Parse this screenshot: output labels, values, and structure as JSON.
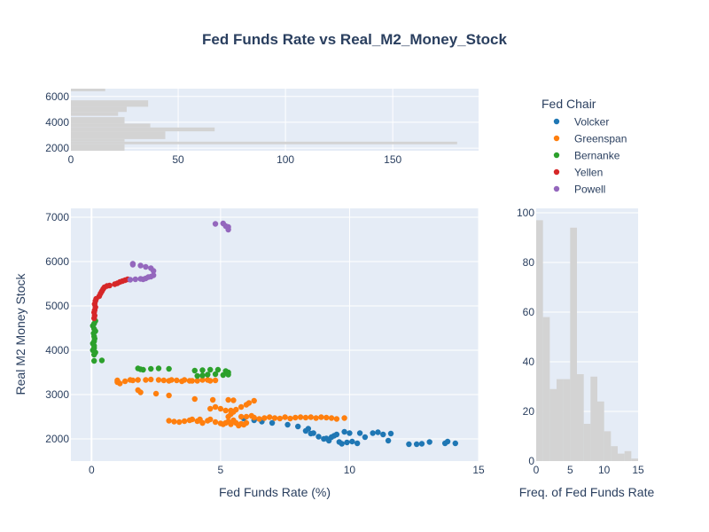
{
  "chart_data": {
    "type": "scatter",
    "title": "Fed Funds Rate vs Real_M2_Money_Stock",
    "xlabel": "Fed Funds Rate (%)",
    "ylabel": "Real M2 Money Stock",
    "xlim": [
      -0.8,
      15
    ],
    "ylim": [
      1500,
      7200
    ],
    "x_ticks": [
      0,
      5,
      10,
      15
    ],
    "y_ticks": [
      2000,
      3000,
      4000,
      5000,
      6000,
      7000
    ],
    "grid": true,
    "plot_bg": "#e5ecf6",
    "legend": {
      "title": "Fed Chair",
      "placement": "top-right"
    },
    "series": [
      {
        "name": "Volcker",
        "color": "#1f77b4",
        "points": [
          [
            5.9,
            2460
          ],
          [
            6.3,
            2420
          ],
          [
            6.6,
            2390
          ],
          [
            7.0,
            2360
          ],
          [
            7.6,
            2320
          ],
          [
            8.0,
            2280
          ],
          [
            8.4,
            2230
          ],
          [
            8.6,
            2130
          ],
          [
            8.8,
            2050
          ],
          [
            9.0,
            2000
          ],
          [
            9.2,
            1960
          ],
          [
            9.3,
            2040
          ],
          [
            9.5,
            2100
          ],
          [
            9.6,
            1930
          ],
          [
            9.7,
            1890
          ],
          [
            9.8,
            2160
          ],
          [
            10.0,
            2130
          ],
          [
            10.1,
            1940
          ],
          [
            10.3,
            1900
          ],
          [
            10.4,
            2130
          ],
          [
            10.9,
            2130
          ],
          [
            11.1,
            2150
          ],
          [
            11.3,
            2100
          ],
          [
            11.5,
            1960
          ],
          [
            11.6,
            2120
          ],
          [
            12.3,
            1880
          ],
          [
            12.6,
            1880
          ],
          [
            12.8,
            1890
          ],
          [
            13.1,
            1930
          ],
          [
            13.8,
            1940
          ],
          [
            14.1,
            1900
          ],
          [
            8.3,
            2180
          ],
          [
            8.5,
            2120
          ],
          [
            9.1,
            2010
          ],
          [
            9.4,
            2070
          ],
          [
            9.9,
            1920
          ],
          [
            10.6,
            2040
          ],
          [
            13.7,
            1900
          ]
        ]
      },
      {
        "name": "Greenspan",
        "color": "#ff7f0e",
        "points": [
          [
            1.0,
            3280
          ],
          [
            1.0,
            3320
          ],
          [
            1.1,
            3250
          ],
          [
            1.3,
            3300
          ],
          [
            1.5,
            3330
          ],
          [
            1.6,
            3320
          ],
          [
            1.8,
            3330
          ],
          [
            1.8,
            3100
          ],
          [
            1.9,
            3050
          ],
          [
            2.1,
            3330
          ],
          [
            2.3,
            3340
          ],
          [
            2.5,
            3020
          ],
          [
            2.6,
            3330
          ],
          [
            2.8,
            3320
          ],
          [
            3.0,
            3310
          ],
          [
            3.0,
            2980
          ],
          [
            3.1,
            3330
          ],
          [
            3.3,
            3320
          ],
          [
            3.5,
            3300
          ],
          [
            3.6,
            3330
          ],
          [
            3.8,
            3310
          ],
          [
            3.9,
            3310
          ],
          [
            4.0,
            2900
          ],
          [
            4.1,
            3310
          ],
          [
            4.3,
            3330
          ],
          [
            4.5,
            3330
          ],
          [
            4.6,
            3310
          ],
          [
            4.8,
            3320
          ],
          [
            4.7,
            2880
          ],
          [
            3.0,
            2410
          ],
          [
            3.2,
            2390
          ],
          [
            3.4,
            2380
          ],
          [
            3.6,
            2400
          ],
          [
            3.8,
            2420
          ],
          [
            3.9,
            2440
          ],
          [
            4.1,
            2400
          ],
          [
            4.3,
            2360
          ],
          [
            4.5,
            2410
          ],
          [
            4.6,
            2440
          ],
          [
            4.8,
            2380
          ],
          [
            5.0,
            2350
          ],
          [
            5.1,
            2330
          ],
          [
            5.2,
            2360
          ],
          [
            5.3,
            2390
          ],
          [
            5.4,
            2330
          ],
          [
            5.5,
            2420
          ],
          [
            5.6,
            2360
          ],
          [
            5.7,
            2300
          ],
          [
            5.8,
            2340
          ],
          [
            5.9,
            2320
          ],
          [
            6.0,
            2360
          ],
          [
            5.3,
            2500
          ],
          [
            5.4,
            2560
          ],
          [
            5.4,
            2640
          ],
          [
            5.5,
            2610
          ],
          [
            5.6,
            2660
          ],
          [
            5.3,
            2880
          ],
          [
            5.5,
            2870
          ],
          [
            5.8,
            2720
          ],
          [
            6.0,
            2770
          ],
          [
            6.1,
            2810
          ],
          [
            6.3,
            2860
          ],
          [
            4.6,
            2680
          ],
          [
            4.8,
            2720
          ],
          [
            5.0,
            2680
          ],
          [
            5.2,
            2640
          ],
          [
            6.3,
            2480
          ],
          [
            6.5,
            2450
          ],
          [
            6.7,
            2470
          ],
          [
            6.9,
            2490
          ],
          [
            7.1,
            2470
          ],
          [
            7.3,
            2460
          ],
          [
            7.5,
            2490
          ],
          [
            7.7,
            2460
          ],
          [
            7.9,
            2480
          ],
          [
            8.1,
            2490
          ],
          [
            8.3,
            2480
          ],
          [
            8.5,
            2490
          ],
          [
            8.7,
            2470
          ],
          [
            8.9,
            2490
          ],
          [
            9.1,
            2480
          ],
          [
            9.3,
            2470
          ],
          [
            9.5,
            2450
          ],
          [
            9.8,
            2470
          ],
          [
            6.0,
            2500
          ],
          [
            6.2,
            2520
          ],
          [
            5.8,
            2500
          ],
          [
            4.3,
            2360
          ],
          [
            4.2,
            2440
          ]
        ]
      },
      {
        "name": "Bernanke",
        "color": "#2ca02c",
        "points": [
          [
            1.8,
            3590
          ],
          [
            1.9,
            3570
          ],
          [
            2.0,
            3560
          ],
          [
            2.3,
            3580
          ],
          [
            2.6,
            3590
          ],
          [
            3.0,
            3580
          ],
          [
            4.0,
            3540
          ],
          [
            4.3,
            3550
          ],
          [
            4.6,
            3560
          ],
          [
            4.9,
            3560
          ],
          [
            5.2,
            3530
          ],
          [
            5.3,
            3500
          ],
          [
            5.3,
            3450
          ],
          [
            4.5,
            3450
          ],
          [
            4.8,
            3460
          ],
          [
            5.1,
            3440
          ],
          [
            4.1,
            3420
          ],
          [
            4.3,
            3430
          ],
          [
            0.1,
            3760
          ],
          [
            0.4,
            3770
          ],
          [
            0.1,
            3900
          ],
          [
            0.15,
            3950
          ],
          [
            0.05,
            4000
          ],
          [
            0.1,
            4050
          ],
          [
            0.1,
            4100
          ],
          [
            0.05,
            4150
          ],
          [
            0.1,
            4200
          ],
          [
            0.12,
            4260
          ],
          [
            0.1,
            4310
          ],
          [
            0.08,
            4380
          ],
          [
            0.15,
            4430
          ],
          [
            0.1,
            4480
          ],
          [
            0.05,
            4550
          ],
          [
            0.1,
            4600
          ],
          [
            0.15,
            4660
          ]
        ]
      },
      {
        "name": "Yellen",
        "color": "#d62728",
        "points": [
          [
            0.1,
            4720
          ],
          [
            0.12,
            4780
          ],
          [
            0.1,
            4850
          ],
          [
            0.12,
            4900
          ],
          [
            0.15,
            4970
          ],
          [
            0.12,
            5040
          ],
          [
            0.15,
            5110
          ],
          [
            0.18,
            5160
          ],
          [
            0.3,
            5220
          ],
          [
            0.35,
            5280
          ],
          [
            0.4,
            5330
          ],
          [
            0.45,
            5380
          ],
          [
            0.5,
            5420
          ],
          [
            0.6,
            5450
          ],
          [
            0.7,
            5460
          ],
          [
            0.9,
            5490
          ],
          [
            1.0,
            5510
          ],
          [
            1.1,
            5540
          ],
          [
            1.2,
            5560
          ],
          [
            1.3,
            5580
          ],
          [
            1.4,
            5600
          ]
        ]
      },
      {
        "name": "Powell",
        "color": "#9467bd",
        "points": [
          [
            1.5,
            5590
          ],
          [
            1.7,
            5600
          ],
          [
            1.9,
            5610
          ],
          [
            2.1,
            5620
          ],
          [
            2.3,
            5660
          ],
          [
            2.4,
            5690
          ],
          [
            2.4,
            5790
          ],
          [
            2.3,
            5850
          ],
          [
            2.1,
            5880
          ],
          [
            1.9,
            5910
          ],
          [
            1.6,
            5950
          ],
          [
            1.6,
            5930
          ],
          [
            2.0,
            5600
          ],
          [
            2.2,
            5650
          ],
          [
            4.8,
            6850
          ],
          [
            5.1,
            6860
          ],
          [
            5.3,
            6780
          ],
          [
            5.3,
            6720
          ],
          [
            5.2,
            6800
          ]
        ]
      }
    ],
    "top_histogram": {
      "x_axis_ticks": [
        0,
        50,
        100,
        150
      ],
      "xlim": [
        0,
        190
      ],
      "y_axis_ticks": [
        2000,
        4000,
        6000
      ],
      "bins": [
        {
          "y0": 6400,
          "y1": 6600,
          "count": 16
        },
        {
          "y0": 5200,
          "y1": 5700,
          "count": 36
        },
        {
          "y0": 4800,
          "y1": 5200,
          "count": 26
        },
        {
          "y0": 4500,
          "y1": 4800,
          "count": 22
        },
        {
          "y0": 3900,
          "y1": 4400,
          "count": 25
        },
        {
          "y0": 3600,
          "y1": 3900,
          "count": 37
        },
        {
          "y0": 3300,
          "y1": 3600,
          "count": 67
        },
        {
          "y0": 2700,
          "y1": 3300,
          "count": 44
        },
        {
          "y0": 2500,
          "y1": 2700,
          "count": 25
        },
        {
          "y0": 2300,
          "y1": 2500,
          "count": 180
        },
        {
          "y0": 1800,
          "y1": 2300,
          "count": 25
        }
      ],
      "bar_color": "#d3d3d3"
    },
    "right_histogram": {
      "xlabel": "Freq. of Fed Funds Rate",
      "x_axis_ticks": [
        0,
        5,
        10,
        15
      ],
      "xlim": [
        0,
        15
      ],
      "y_axis_ticks": [
        0,
        20,
        40,
        60,
        80,
        100
      ],
      "ylim": [
        0,
        100
      ],
      "bins": [
        {
          "x0": 0,
          "x1": 1,
          "count": 97
        },
        {
          "x0": 1,
          "x1": 2,
          "count": 58
        },
        {
          "x0": 2,
          "x1": 3,
          "count": 29
        },
        {
          "x0": 3,
          "x1": 4,
          "count": 33
        },
        {
          "x0": 4,
          "x1": 5,
          "count": 33
        },
        {
          "x0": 5,
          "x1": 6,
          "count": 94
        },
        {
          "x0": 6,
          "x1": 7,
          "count": 35
        },
        {
          "x0": 7,
          "x1": 8,
          "count": 15
        },
        {
          "x0": 8,
          "x1": 9,
          "count": 34
        },
        {
          "x0": 9,
          "x1": 10,
          "count": 24
        },
        {
          "x0": 10,
          "x1": 11,
          "count": 12
        },
        {
          "x0": 11,
          "x1": 12,
          "count": 6
        },
        {
          "x0": 12,
          "x1": 13,
          "count": 3
        },
        {
          "x0": 13,
          "x1": 14,
          "count": 4
        },
        {
          "x0": 14,
          "x1": 15,
          "count": 1
        }
      ],
      "bar_color": "#d3d3d3"
    }
  }
}
